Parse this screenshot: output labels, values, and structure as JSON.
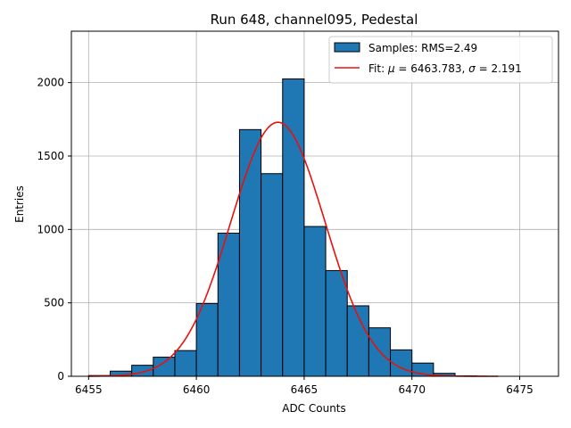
{
  "chart_data": {
    "type": "bar",
    "title": "Run 648, channel095, Pedestal",
    "xlabel": "ADC Counts",
    "ylabel": "Entries",
    "xlim": [
      6454.2,
      6476.8
    ],
    "ylim": [
      0,
      2350
    ],
    "xticks": [
      6455,
      6460,
      6465,
      6470,
      6475
    ],
    "yticks": [
      0,
      500,
      1000,
      1500,
      2000
    ],
    "grid": true,
    "legend_position": "top-right",
    "histogram": {
      "name": "Samples: RMS=2.49",
      "color": "#1f77b4",
      "bin_width": 1,
      "bins": [
        {
          "left": 6455,
          "count": 5
        },
        {
          "left": 6456,
          "count": 35
        },
        {
          "left": 6457,
          "count": 75
        },
        {
          "left": 6458,
          "count": 130
        },
        {
          "left": 6459,
          "count": 175
        },
        {
          "left": 6460,
          "count": 495
        },
        {
          "left": 6461,
          "count": 975
        },
        {
          "left": 6462,
          "count": 1680
        },
        {
          "left": 6463,
          "count": 1380
        },
        {
          "left": 6464,
          "count": 2025
        },
        {
          "left": 6465,
          "count": 1020
        },
        {
          "left": 6466,
          "count": 720
        },
        {
          "left": 6467,
          "count": 480
        },
        {
          "left": 6468,
          "count": 330
        },
        {
          "left": 6469,
          "count": 180
        },
        {
          "left": 6470,
          "count": 90
        },
        {
          "left": 6471,
          "count": 20
        },
        {
          "left": 6472,
          "count": 3
        }
      ]
    },
    "fit": {
      "name": "Fit: μ = 6463.783, σ = 2.191",
      "label_prefix": "Fit: ",
      "mu_symbol": "μ",
      "mu_text": " = 6463.783, ",
      "sigma_symbol": "σ",
      "sigma_text": " = 2.191",
      "color": "#e8120c",
      "mu": 6463.783,
      "sigma": 2.191,
      "amplitude": 1730,
      "x_range": [
        6455,
        6474
      ]
    }
  }
}
